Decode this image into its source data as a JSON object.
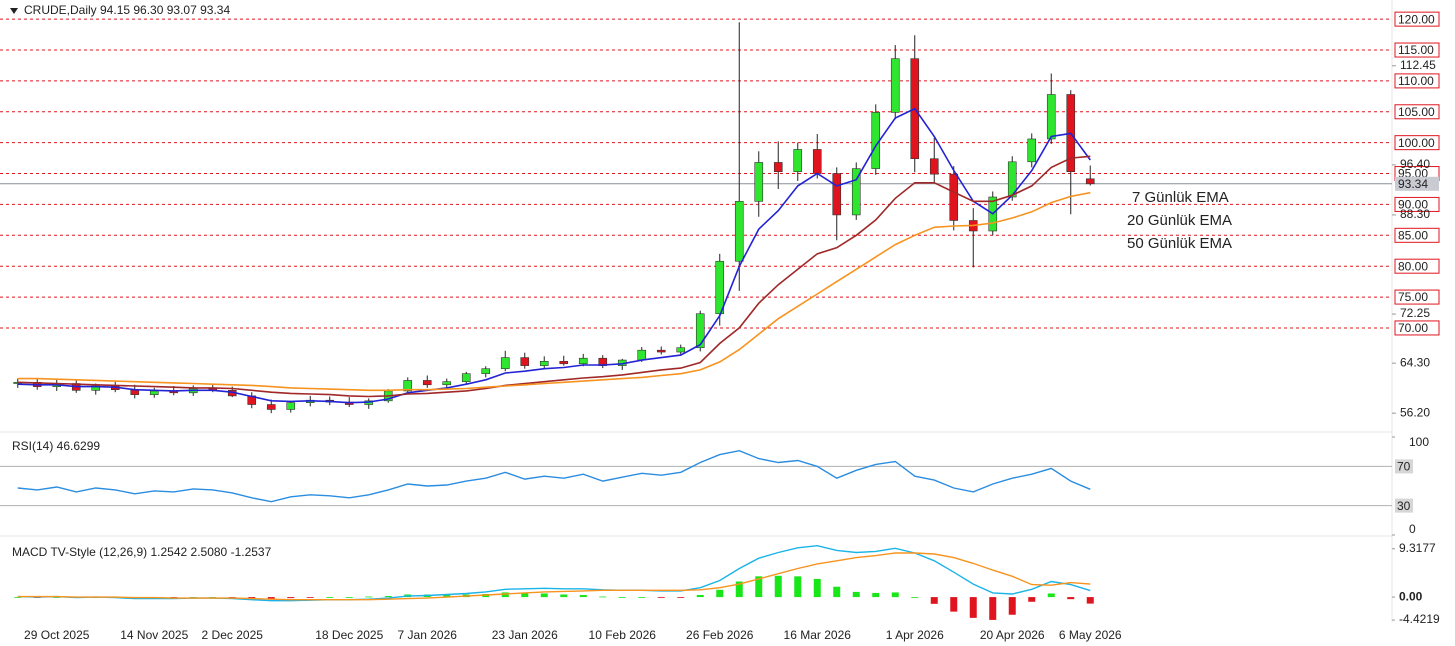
{
  "chart_data": {
    "type": "candlestick",
    "title": "CRUDE,Daily  94.15 96.30 93.07 93.34",
    "categories": [
      null,
      null,
      "29 Oct 2025",
      null,
      null,
      null,
      null,
      "14 Nov 2025",
      null,
      null,
      null,
      "2 Dec 2025",
      null,
      null,
      null,
      null,
      null,
      "18 Dec 2025",
      null,
      null,
      null,
      "7 Jan 2026",
      null,
      null,
      null,
      null,
      "23 Jan 2026",
      null,
      null,
      null,
      null,
      "10 Feb 2026",
      null,
      null,
      null,
      null,
      "26 Feb 2026",
      null,
      null,
      null,
      null,
      "16 Mar 2026",
      null,
      null,
      null,
      null,
      "1 Apr 2026",
      null,
      null,
      null,
      null,
      "20 Apr 2026",
      null,
      null,
      null,
      "6 May 2026"
    ],
    "open": [
      61.0,
      61.2,
      60.5,
      61.0,
      59.9,
      60.6,
      60.0,
      59.2,
      59.8,
      59.5,
      60.2,
      59.9,
      59.0,
      57.6,
      56.8,
      57.9,
      58.3,
      58.0,
      57.6,
      58.2,
      59.8,
      61.5,
      60.8,
      61.3,
      62.6,
      63.4,
      65.2,
      63.9,
      64.6,
      64.2,
      65.1,
      63.9,
      64.8,
      66.4,
      66.1,
      66.8,
      72.3,
      80.8,
      90.5,
      96.8,
      95.3,
      98.9,
      95.0,
      88.3,
      95.8,
      104.9,
      113.6,
      97.4,
      94.9,
      87.4,
      85.7,
      91.2,
      96.9,
      100.6,
      107.8,
      94.15
    ],
    "high": [
      61.8,
      61.9,
      61.6,
      61.5,
      61.0,
      61.3,
      60.8,
      60.3,
      60.6,
      60.7,
      61.0,
      60.5,
      59.6,
      58.4,
      58.2,
      59.0,
      58.9,
      58.8,
      58.6,
      60.1,
      62.0,
      62.3,
      61.8,
      62.9,
      63.8,
      66.3,
      66.0,
      65.4,
      65.5,
      65.8,
      65.6,
      65.0,
      66.9,
      67.0,
      67.3,
      72.8,
      82.0,
      119.5,
      98.6,
      100.2,
      100.0,
      101.4,
      96.0,
      96.8,
      106.2,
      115.8,
      117.4,
      100.8,
      96.2,
      89.4,
      92.1,
      97.8,
      101.5,
      111.2,
      108.5,
      96.3
    ],
    "low": [
      60.3,
      60.0,
      59.8,
      59.5,
      59.2,
      59.6,
      58.6,
      58.7,
      59.1,
      59.0,
      59.6,
      58.8,
      57.0,
      56.2,
      56.3,
      57.3,
      57.5,
      57.2,
      56.9,
      57.9,
      59.5,
      60.3,
      60.2,
      60.9,
      62.0,
      63.0,
      63.4,
      63.3,
      63.9,
      63.8,
      63.5,
      63.2,
      64.5,
      65.7,
      65.6,
      66.2,
      70.4,
      76.0,
      88.0,
      92.5,
      93.8,
      94.2,
      84.2,
      87.5,
      94.8,
      103.8,
      95.2,
      93.6,
      85.8,
      79.8,
      85.0,
      90.6,
      96.0,
      99.8,
      88.4,
      93.07
    ],
    "close": [
      61.2,
      60.5,
      61.0,
      59.9,
      60.6,
      60.0,
      59.2,
      59.8,
      59.5,
      60.2,
      59.9,
      59.0,
      57.6,
      56.8,
      57.9,
      58.3,
      58.0,
      57.6,
      58.2,
      59.8,
      61.5,
      60.8,
      61.3,
      62.6,
      63.4,
      65.2,
      63.9,
      64.6,
      64.2,
      65.1,
      63.9,
      64.8,
      66.4,
      66.1,
      66.8,
      72.3,
      80.8,
      90.5,
      96.8,
      95.3,
      98.9,
      95.0,
      88.3,
      95.8,
      104.9,
      113.6,
      97.4,
      94.9,
      87.4,
      85.7,
      91.2,
      96.9,
      100.6,
      107.8,
      95.3,
      93.34
    ],
    "up_color": "#2ee62e",
    "down_color": "#e0141e",
    "wick_color": "#222222",
    "series": [
      {
        "name": "7 Günlük EMA",
        "color": "#2323d6",
        "values": [
          60.9,
          60.8,
          60.8,
          60.5,
          60.5,
          60.4,
          60.0,
          59.9,
          59.8,
          59.9,
          59.9,
          59.6,
          58.9,
          58.2,
          58.1,
          58.2,
          58.1,
          57.9,
          58.0,
          58.5,
          59.5,
          59.9,
          60.3,
          60.9,
          61.6,
          62.7,
          63.0,
          63.4,
          63.6,
          64.0,
          64.0,
          64.2,
          64.8,
          65.2,
          65.6,
          67.3,
          72.0,
          80.0,
          86.0,
          89.0,
          93.0,
          95.0,
          93.0,
          94.0,
          99.5,
          104.0,
          105.5,
          101.0,
          95.5,
          90.5,
          88.5,
          91.5,
          95.5,
          101.0,
          101.5,
          97.2
        ]
      },
      {
        "name": "20 Günlük EMA",
        "color": "#a02828",
        "values": [
          61.2,
          61.1,
          61.0,
          60.9,
          60.8,
          60.7,
          60.6,
          60.5,
          60.4,
          60.3,
          60.3,
          60.2,
          59.9,
          59.6,
          59.4,
          59.3,
          59.2,
          59.0,
          58.9,
          59.0,
          59.3,
          59.4,
          59.6,
          59.8,
          60.2,
          60.7,
          61.0,
          61.3,
          61.6,
          61.9,
          62.1,
          62.4,
          62.8,
          63.2,
          63.5,
          64.4,
          67.5,
          70.0,
          74.0,
          77.0,
          79.5,
          82.0,
          83.0,
          85.0,
          87.5,
          91.0,
          93.5,
          93.5,
          92.0,
          90.5,
          90.5,
          91.5,
          93.0,
          96.0,
          97.5,
          97.8
        ]
      },
      {
        "name": "50 Günlük EMA",
        "color": "#f7931e",
        "values": [
          61.8,
          61.8,
          61.7,
          61.6,
          61.5,
          61.4,
          61.3,
          61.2,
          61.1,
          61.0,
          60.9,
          60.8,
          60.7,
          60.5,
          60.3,
          60.2,
          60.1,
          60.0,
          59.9,
          59.9,
          60.0,
          60.0,
          60.1,
          60.2,
          60.4,
          60.6,
          60.8,
          61.0,
          61.2,
          61.4,
          61.6,
          61.8,
          62.0,
          62.3,
          62.6,
          63.2,
          64.5,
          66.5,
          69.0,
          71.5,
          73.5,
          75.5,
          77.5,
          79.5,
          81.5,
          83.5,
          85.0,
          86.3,
          86.5,
          86.6,
          87.0,
          87.8,
          88.8,
          90.3,
          91.3,
          91.9
        ]
      }
    ],
    "ylim": [
      53.8,
      123.1
    ],
    "yticks": [
      112.45,
      {
        "value": 96.4,
        "label": "96.40"
      },
      {
        "value": 88.3,
        "label": "88.30"
      },
      72.25,
      {
        "value": 64.3,
        "label": "64.30"
      },
      {
        "value": 56.2,
        "label": "56.20"
      }
    ],
    "levels": [
      {
        "value": 120,
        "label": "120.00"
      },
      {
        "value": 115,
        "label": "115.00"
      },
      {
        "value": 110,
        "label": "110.00"
      },
      {
        "value": 105,
        "label": "105.00"
      },
      {
        "value": 100,
        "label": "100.00"
      },
      {
        "value": 95,
        "label": "95.00"
      },
      {
        "value": 90,
        "label": "90.00"
      },
      {
        "value": 85,
        "label": "85.00"
      },
      {
        "value": 80,
        "label": "80.00"
      },
      {
        "value": 75,
        "label": "75.00"
      },
      {
        "value": 70,
        "label": "70.00"
      }
    ],
    "level_color": "#e0141e",
    "last_price": 93.34,
    "rsi": {
      "title": "RSI(14) 46.6299",
      "color": "#2b8de0",
      "values": [
        48,
        46,
        49,
        44,
        48,
        46,
        42,
        45,
        44,
        47,
        46,
        43,
        38,
        34,
        39,
        41,
        40,
        38,
        41,
        46,
        52,
        50,
        51,
        55,
        58,
        64,
        57,
        60,
        58,
        62,
        55,
        59,
        63,
        61,
        64,
        74,
        82,
        86,
        78,
        74,
        76,
        70,
        58,
        66,
        72,
        75,
        60,
        56,
        48,
        44,
        52,
        58,
        62,
        68,
        55,
        46.63
      ],
      "ylim": [
        0,
        100
      ],
      "yticks": [
        100,
        0
      ],
      "levels": [
        70,
        30
      ]
    },
    "macd": {
      "title": "MACD TV-Style (12,26,9) 1.2542 2.5080 -1.2537",
      "macd_color": "#1ab4e8",
      "signal_color": "#f7931e",
      "pos_color": "#19e619",
      "neg_color": "#e0141e",
      "macd": [
        0.1,
        0.0,
        0.1,
        -0.1,
        0.0,
        -0.1,
        -0.3,
        -0.3,
        -0.3,
        -0.2,
        -0.2,
        -0.3,
        -0.5,
        -0.7,
        -0.7,
        -0.6,
        -0.5,
        -0.5,
        -0.4,
        -0.2,
        0.2,
        0.3,
        0.5,
        0.7,
        1.0,
        1.5,
        1.6,
        1.7,
        1.6,
        1.6,
        1.4,
        1.3,
        1.3,
        1.2,
        1.2,
        1.8,
        3.2,
        5.5,
        7.5,
        8.6,
        9.5,
        9.9,
        9.0,
        8.6,
        8.8,
        9.4,
        8.5,
        7.0,
        4.8,
        2.5,
        0.8,
        0.6,
        1.5,
        3.0,
        2.4,
        1.2542
      ],
      "signal": [
        0.1,
        0.1,
        0.1,
        0.0,
        0.0,
        0.0,
        -0.1,
        -0.1,
        -0.2,
        -0.2,
        -0.2,
        -0.2,
        -0.3,
        -0.4,
        -0.5,
        -0.5,
        -0.5,
        -0.5,
        -0.5,
        -0.4,
        -0.3,
        -0.2,
        0.0,
        0.2,
        0.4,
        0.6,
        0.8,
        1.0,
        1.1,
        1.2,
        1.3,
        1.3,
        1.3,
        1.3,
        1.3,
        1.4,
        1.8,
        2.5,
        3.5,
        4.5,
        5.5,
        6.4,
        7.0,
        7.6,
        8.0,
        8.5,
        8.5,
        8.3,
        7.6,
        6.5,
        5.2,
        4.0,
        2.4,
        2.3,
        2.8,
        2.508
      ],
      "hist": [
        0.0,
        -0.1,
        0.0,
        -0.1,
        0.0,
        -0.1,
        -0.2,
        -0.2,
        -0.1,
        0.0,
        0.0,
        -0.1,
        -0.2,
        -0.3,
        -0.2,
        -0.1,
        0.0,
        0.0,
        0.1,
        0.2,
        0.5,
        0.5,
        0.5,
        0.5,
        0.6,
        0.9,
        0.8,
        0.7,
        0.5,
        0.4,
        0.1,
        0.0,
        0.0,
        -0.1,
        -0.1,
        0.4,
        1.4,
        3.0,
        4.0,
        4.1,
        4.0,
        3.5,
        2.0,
        1.0,
        0.8,
        0.9,
        0.0,
        -1.3,
        -2.8,
        -4.0,
        -4.4,
        -3.4,
        -0.9,
        0.7,
        -0.4,
        -1.2537
      ],
      "ylim": [
        -4.8,
        11.0
      ],
      "yticks": [
        9.3177,
        {
          "value": 0,
          "label": "0.00"
        },
        -4.4219
      ]
    }
  }
}
